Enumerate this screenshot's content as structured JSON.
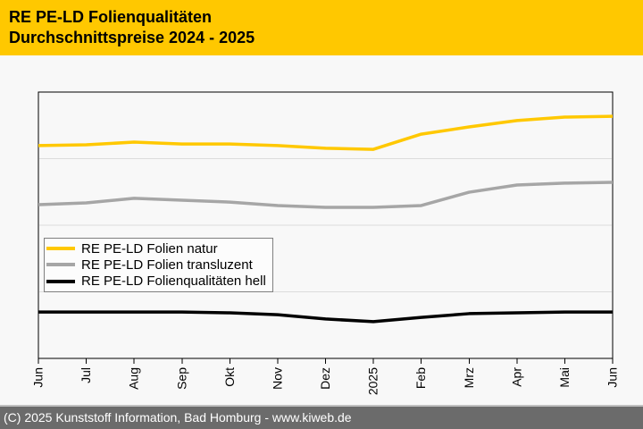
{
  "header": {
    "title_line1": "RE PE-LD Folienqualitäten",
    "title_line2": "Durchschnittspreise 2024 - 2025",
    "background_color": "#ffc800",
    "text_color": "#000000"
  },
  "chart_data": {
    "type": "line",
    "title": "RE PE-LD Folienqualitäten Durchschnittspreise 2024 - 2025",
    "categories": [
      "Jun",
      "Jul",
      "Aug",
      "Sep",
      "Okt",
      "Nov",
      "Dez",
      "2025",
      "Feb",
      "Mrz",
      "Apr",
      "Mai",
      "Jun"
    ],
    "series": [
      {
        "name": "RE PE-LD Folien natur",
        "color": "#ffc800",
        "values": [
          79.9,
          80.2,
          81.2,
          80.5,
          80.5,
          79.9,
          78.9,
          78.5,
          84.2,
          86.9,
          89.3,
          90.6,
          90.9
        ]
      },
      {
        "name": "RE PE-LD Folien transluzent",
        "color": "#a6a6a6",
        "values": [
          57.7,
          58.4,
          60.1,
          59.4,
          58.7,
          57.4,
          56.7,
          56.7,
          57.4,
          62.4,
          65.1,
          65.8,
          66.1
        ]
      },
      {
        "name": "RE PE-LD Folienqualitäten hell",
        "color": "#000000",
        "values": [
          17.4,
          17.4,
          17.4,
          17.4,
          17.1,
          16.4,
          14.8,
          13.8,
          15.4,
          16.8,
          17.1,
          17.4,
          17.4
        ]
      }
    ],
    "xlabel": "",
    "ylabel": "",
    "ylim": [
      0,
      100
    ],
    "y_axis_labels_visible": false,
    "grid": "horizontal",
    "legend_position": "inside-middle-left"
  },
  "chart_style": {
    "frame_color": "#000000",
    "grid_color": "#dcdcdc",
    "axis_text_color": "#000000"
  },
  "footer": {
    "text": "(C) 2025 Kunststoff Information, Bad Homburg - www.kiweb.de",
    "background_color": "#6b6b6b",
    "text_color": "#ffffff"
  }
}
